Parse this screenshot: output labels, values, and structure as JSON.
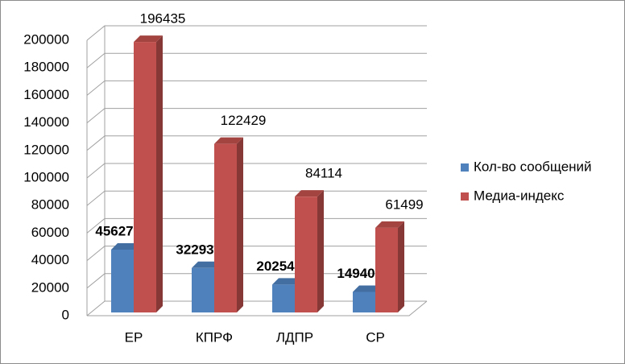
{
  "chart_data": {
    "type": "bar3d",
    "categories": [
      "ЕР",
      "КПРФ",
      "ЛДПР",
      "СР"
    ],
    "series": [
      {
        "name": "Кол-во сообщений",
        "color": "#4f81bd",
        "values": [
          45627,
          32293,
          20254,
          14940
        ]
      },
      {
        "name": "Медиа-индекс",
        "color": "#c0504d",
        "values": [
          196435,
          122429,
          84114,
          61499
        ]
      }
    ],
    "ylim": [
      0,
      200000
    ],
    "yticks": [
      0,
      20000,
      40000,
      60000,
      80000,
      100000,
      120000,
      140000,
      160000,
      180000,
      200000
    ],
    "grid": true,
    "legend": "right"
  }
}
